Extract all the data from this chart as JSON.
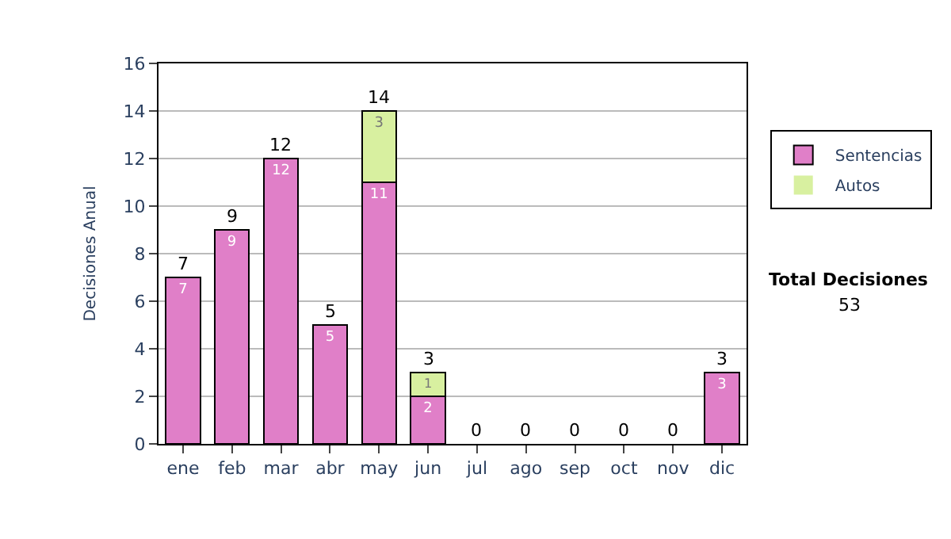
{
  "chart_data": {
    "type": "bar",
    "stacked": true,
    "ylabel": "Decisiones Anual",
    "categories": [
      "ene",
      "feb",
      "mar",
      "abr",
      "may",
      "jun",
      "jul",
      "ago",
      "sep",
      "oct",
      "nov",
      "dic"
    ],
    "series": [
      {
        "name": "Sentencias",
        "color": "#e07fc8",
        "values": [
          7,
          9,
          12,
          5,
          11,
          2,
          0,
          0,
          0,
          0,
          0,
          3
        ],
        "value_labels": [
          "7",
          "9",
          "12",
          "5",
          "11",
          "2",
          null,
          null,
          null,
          null,
          null,
          "3"
        ]
      },
      {
        "name": "Autos",
        "color": "#d8f0a0",
        "values": [
          0,
          0,
          0,
          0,
          3,
          1,
          0,
          0,
          0,
          0,
          0,
          0
        ],
        "value_labels": [
          null,
          null,
          null,
          null,
          "3",
          "1",
          null,
          null,
          null,
          null,
          null,
          null
        ]
      }
    ],
    "totals": [
      "7",
      "9",
      "12",
      "5",
      "14",
      "3",
      "0",
      "0",
      "0",
      "0",
      "0",
      "3"
    ],
    "ylim": [
      0,
      16
    ],
    "yticks": [
      0,
      2,
      4,
      6,
      8,
      10,
      12,
      14,
      16
    ],
    "grid": "y",
    "legend": "right",
    "annotations": [
      "Total Decisiones",
      "53"
    ]
  }
}
